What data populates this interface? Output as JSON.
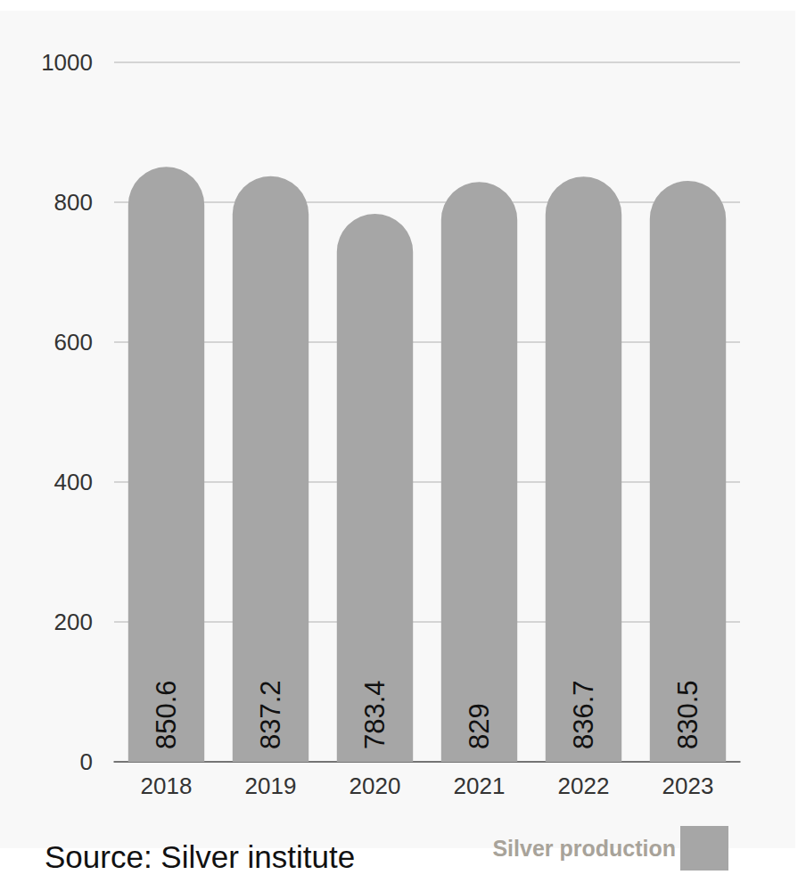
{
  "chart_data": {
    "type": "bar",
    "categories": [
      "2018",
      "2019",
      "2020",
      "2021",
      "2022",
      "2023"
    ],
    "series": [
      {
        "name": "Silver production",
        "color": "#a6a6a6",
        "values": [
          850.6,
          837.2,
          783.4,
          829,
          836.7,
          830.5
        ]
      }
    ],
    "ylim": [
      0,
      1000
    ],
    "yticks": [
      0,
      200,
      400,
      600,
      800,
      1000
    ],
    "grid": true,
    "data_labels": true,
    "legend": "bottom-right",
    "annotations": [
      "Source: Silver institute"
    ]
  }
}
